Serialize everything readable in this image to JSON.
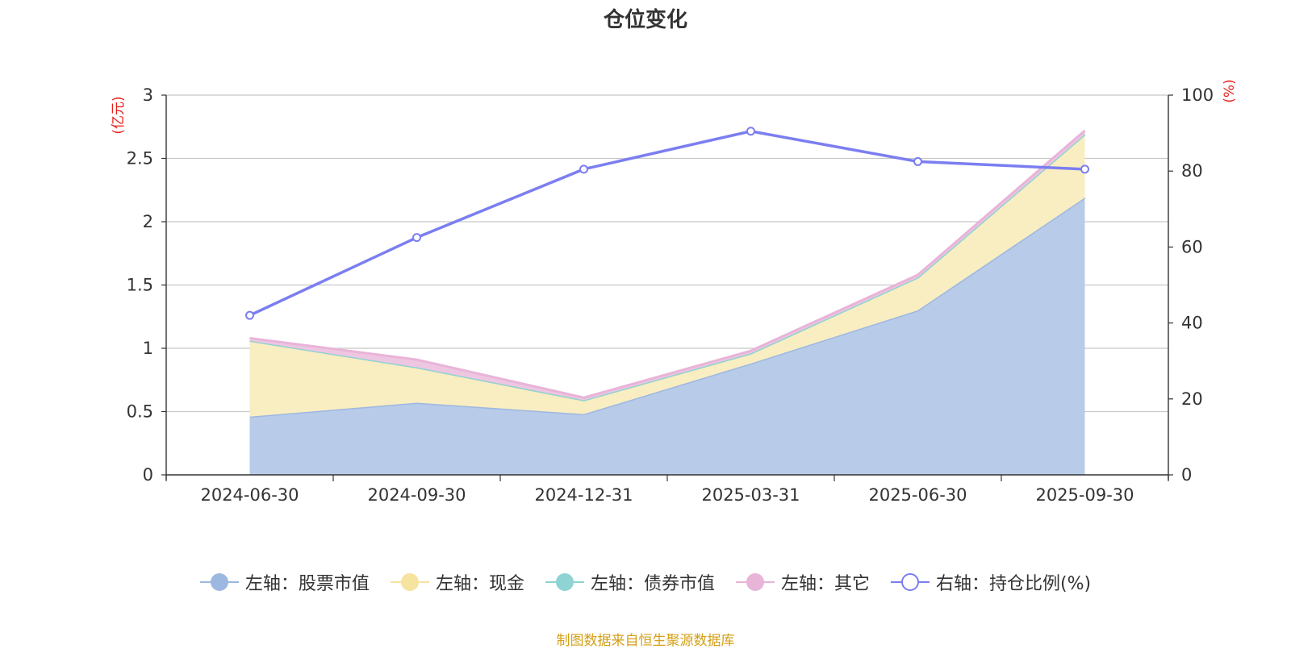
{
  "title": "仓位变化",
  "source_note": "制图数据来自恒生聚源数据库",
  "chart_data": {
    "type": "area",
    "categories": [
      "2024-06-30",
      "2024-09-30",
      "2024-12-31",
      "2025-03-31",
      "2025-06-30",
      "2025-09-30"
    ],
    "left_axis": {
      "unit_label": "(亿元)",
      "min": 0,
      "max": 3,
      "ticks": [
        "0",
        "0.5",
        "1",
        "1.5",
        "2",
        "2.5",
        "3"
      ]
    },
    "right_axis": {
      "unit_label": "(%)",
      "min": 0,
      "max": 100,
      "ticks": [
        "0",
        "20",
        "40",
        "60",
        "80",
        "100"
      ]
    },
    "stacked_series": [
      {
        "name": "左轴：股票市值",
        "color": "#9db8e0",
        "fill": "#b8cbe9",
        "values": [
          0.46,
          0.57,
          0.48,
          0.88,
          1.3,
          2.19
        ]
      },
      {
        "name": "左轴：现金",
        "color": "#f6e3a0",
        "fill": "#f9edc2",
        "values": [
          0.6,
          0.28,
          0.11,
          0.08,
          0.26,
          0.5
        ]
      },
      {
        "name": "左轴：债券市值",
        "color": "#8fd3d3",
        "fill": "#a8dede",
        "values": [
          0,
          0,
          0,
          0,
          0,
          0
        ]
      },
      {
        "name": "左轴：其它",
        "color": "#e8b4d8",
        "fill": "#eec6e1",
        "values": [
          0.02,
          0.06,
          0.02,
          0.02,
          0.02,
          0.03
        ]
      }
    ],
    "line_series": {
      "name": "右轴：持仓比例(%)",
      "color": "#7b7ef0",
      "values": [
        42,
        62.5,
        80.5,
        90.5,
        82.5,
        80.5
      ]
    },
    "grid": true,
    "legend_position": "bottom"
  }
}
